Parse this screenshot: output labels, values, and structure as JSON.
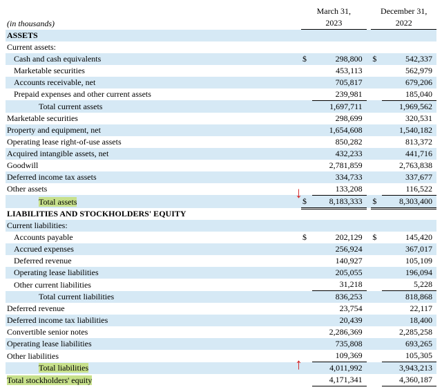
{
  "meta": {
    "units": "(in thousands)"
  },
  "columns": {
    "c1_a": "March 31,",
    "c1_b": "2023",
    "c2_a": "December 31,",
    "c2_b": "2022"
  },
  "sections": {
    "assets_hdr": "ASSETS",
    "liab_hdr": "LIABILITIES AND STOCKHOLDERS' EQUITY"
  },
  "rows": {
    "ca_hdr": "Current assets:",
    "cash": {
      "label": "Cash and cash equivalents",
      "v1": "298,800",
      "v2": "542,337"
    },
    "mktsec_c": {
      "label": "Marketable securities",
      "v1": "453,113",
      "v2": "562,979"
    },
    "ar": {
      "label": "Accounts receivable, net",
      "v1": "705,817",
      "v2": "679,206"
    },
    "prepaid": {
      "label": "Prepaid expenses and other current assets",
      "v1": "239,981",
      "v2": "185,040"
    },
    "tca": {
      "label": "Total current assets",
      "v1": "1,697,711",
      "v2": "1,969,562"
    },
    "mktsec": {
      "label": "Marketable securities",
      "v1": "298,699",
      "v2": "320,531"
    },
    "ppe": {
      "label": "Property and equipment, net",
      "v1": "1,654,608",
      "v2": "1,540,182"
    },
    "rou": {
      "label": "Operating lease right-of-use assets",
      "v1": "850,282",
      "v2": "813,372"
    },
    "intan": {
      "label": "Acquired intangible assets, net",
      "v1": "432,233",
      "v2": "441,716"
    },
    "gw": {
      "label": "Goodwill",
      "v1": "2,781,859",
      "v2": "2,763,838"
    },
    "dta": {
      "label": "Deferred income tax assets",
      "v1": "334,733",
      "v2": "337,677"
    },
    "oa": {
      "label": "Other assets",
      "v1": "133,208",
      "v2": "116,522"
    },
    "ta": {
      "label": "Total assets",
      "v1": "8,183,333",
      "v2": "8,303,400"
    },
    "cl_hdr": "Current liabilities:",
    "ap": {
      "label": "Accounts payable",
      "v1": "202,129",
      "v2": "145,420"
    },
    "accr": {
      "label": "Accrued expenses",
      "v1": "256,924",
      "v2": "367,017"
    },
    "drev_c": {
      "label": "Deferred revenue",
      "v1": "140,927",
      "v2": "105,109"
    },
    "oll_c": {
      "label": "Operating lease liabilities",
      "v1": "205,055",
      "v2": "196,094"
    },
    "ocl": {
      "label": "Other current liabilities",
      "v1": "31,218",
      "v2": "5,228"
    },
    "tcl": {
      "label": "Total current liabilities",
      "v1": "836,253",
      "v2": "818,868"
    },
    "drev": {
      "label": "Deferred revenue",
      "v1": "23,754",
      "v2": "22,117"
    },
    "dtl": {
      "label": "Deferred income tax liabilities",
      "v1": "20,439",
      "v2": "18,400"
    },
    "csn": {
      "label": "Convertible senior notes",
      "v1": "2,286,369",
      "v2": "2,285,258"
    },
    "oll": {
      "label": "Operating lease liabilities",
      "v1": "735,808",
      "v2": "693,265"
    },
    "ol": {
      "label": "Other liabilities",
      "v1": "109,369",
      "v2": "105,305"
    },
    "tl": {
      "label": "Total liabilities",
      "v1": "4,011,992",
      "v2": "3,943,213"
    },
    "tse": {
      "label": "Total stockholders' equity",
      "v1": "4,171,341",
      "v2": "4,360,187"
    }
  },
  "sym": "$"
}
